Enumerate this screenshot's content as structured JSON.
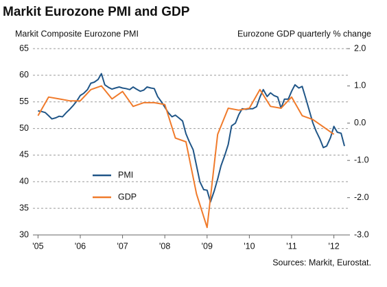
{
  "chart_data": {
    "type": "line",
    "title": "Markit Eurozone PMI and GDP",
    "y_label": "Markit Composite Eurozone PMI",
    "y2_label": "Eurozone GDP quarterly % change",
    "source": "Sources: Markit, Eurostat.",
    "xlim": [
      2004.88,
      2012.38
    ],
    "xticks": [
      {
        "value": 2005,
        "label": "'05"
      },
      {
        "value": 2006,
        "label": "'06"
      },
      {
        "value": 2007,
        "label": "'07"
      },
      {
        "value": 2008,
        "label": "'08"
      },
      {
        "value": 2009,
        "label": "'09"
      },
      {
        "value": 2010,
        "label": "'10"
      },
      {
        "value": 2011,
        "label": "'11"
      },
      {
        "value": 2012,
        "label": "'12"
      }
    ],
    "ylim": [
      30,
      65
    ],
    "yticks": [
      30,
      35,
      40,
      45,
      50,
      55,
      60,
      65
    ],
    "y2lim": [
      -3,
      2
    ],
    "y2ticks": [
      {
        "value": -3,
        "label": "-3.0"
      },
      {
        "value": -2,
        "label": "-2.0"
      },
      {
        "value": -1,
        "label": "-1.0"
      },
      {
        "value": 0,
        "label": "0.0"
      },
      {
        "value": 1,
        "label": "1.0"
      },
      {
        "value": 2,
        "label": "2.0"
      }
    ],
    "grid": true,
    "series": [
      {
        "name": "PMI",
        "color": "#1f5587",
        "x": [
          2005,
          2005.08,
          2005.17,
          2005.25,
          2005.33,
          2005.42,
          2005.5,
          2005.58,
          2005.67,
          2005.75,
          2005.83,
          2005.92,
          2006,
          2006.08,
          2006.17,
          2006.25,
          2006.33,
          2006.42,
          2006.5,
          2006.58,
          2006.67,
          2006.75,
          2006.83,
          2006.92,
          2007,
          2007.08,
          2007.17,
          2007.25,
          2007.33,
          2007.42,
          2007.5,
          2007.58,
          2007.67,
          2007.75,
          2007.83,
          2007.92,
          2008,
          2008.08,
          2008.17,
          2008.25,
          2008.33,
          2008.42,
          2008.5,
          2008.58,
          2008.67,
          2008.75,
          2008.83,
          2008.92,
          2009,
          2009.08,
          2009.17,
          2009.25,
          2009.33,
          2009.42,
          2009.5,
          2009.58,
          2009.67,
          2009.75,
          2009.83,
          2009.92,
          2010,
          2010.08,
          2010.17,
          2010.25,
          2010.33,
          2010.42,
          2010.5,
          2010.58,
          2010.67,
          2010.75,
          2010.83,
          2010.92,
          2011,
          2011.08,
          2011.17,
          2011.25,
          2011.33,
          2011.42,
          2011.5,
          2011.58,
          2011.67,
          2011.75,
          2011.83,
          2011.92,
          2012,
          2012.08,
          2012.17,
          2012.25
        ],
        "values": [
          53.3,
          53.2,
          53.0,
          52.4,
          51.8,
          52.0,
          52.3,
          52.2,
          53.0,
          53.6,
          54.3,
          55.2,
          56.2,
          56.6,
          57.3,
          58.5,
          58.7,
          59.2,
          60.3,
          58.2,
          57.7,
          57.4,
          57.6,
          57.8,
          57.6,
          57.5,
          57.3,
          57.8,
          57.4,
          57.0,
          57.2,
          57.8,
          57.6,
          57.5,
          56.0,
          55.0,
          54.0,
          53.0,
          52.2,
          52.5,
          52.0,
          51.4,
          49.0,
          47.5,
          46.0,
          43.0,
          40.0,
          38.5,
          38.4,
          36.2,
          38.3,
          40.5,
          43.0,
          45.0,
          47.0,
          50.5,
          51.0,
          52.6,
          53.7,
          53.6,
          53.7,
          53.7,
          54.1,
          55.9,
          57.3,
          56.0,
          56.7,
          56.2,
          55.9,
          53.8,
          55.5,
          55.5,
          57.0,
          58.2,
          57.6,
          57.9,
          55.8,
          53.3,
          51.1,
          49.5,
          48.0,
          46.4,
          46.7,
          48.3,
          50.4,
          49.3,
          49.1,
          46.7
        ]
      },
      {
        "name": "GDP",
        "color": "#f07a2a",
        "axis": "y2",
        "x": [
          2005,
          2005.25,
          2005.5,
          2005.75,
          2006,
          2006.25,
          2006.5,
          2006.75,
          2007,
          2007.25,
          2007.5,
          2007.75,
          2008,
          2008.25,
          2008.5,
          2008.75,
          2009,
          2009.25,
          2009.5,
          2009.75,
          2010,
          2010.25,
          2010.5,
          2010.75,
          2011,
          2011.25,
          2011.5,
          2011.75,
          2012
        ],
        "values": [
          0.2,
          0.7,
          0.65,
          0.6,
          0.6,
          0.9,
          1.0,
          0.65,
          0.85,
          0.45,
          0.55,
          0.55,
          0.5,
          -0.4,
          -0.5,
          -1.9,
          -2.8,
          -0.3,
          0.4,
          0.35,
          0.4,
          0.9,
          0.45,
          0.4,
          0.7,
          0.2,
          0.1,
          -0.1,
          -0.3
        ]
      }
    ]
  }
}
